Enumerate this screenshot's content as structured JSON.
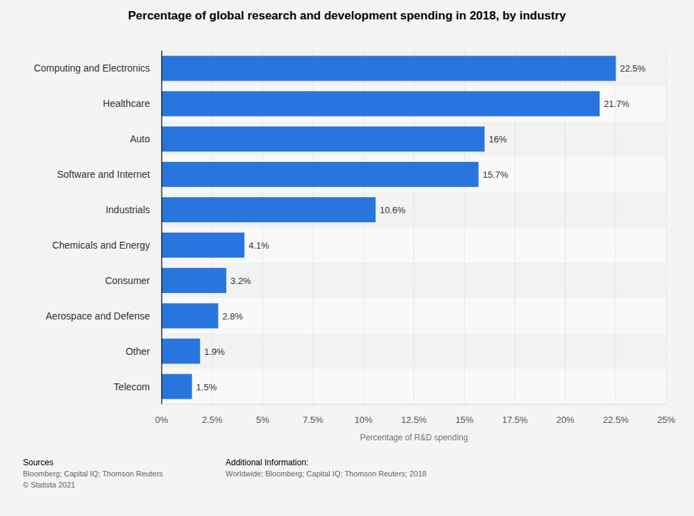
{
  "chart_data": {
    "type": "bar",
    "orientation": "horizontal",
    "title": "Percentage of global research and development spending in 2018, by industry",
    "x_label": "Percentage of R&D spending",
    "categories": [
      "Computing and Electronics",
      "Healthcare",
      "Auto",
      "Software and Internet",
      "Industrials",
      "Chemicals and Energy",
      "Consumer",
      "Aerospace and Defense",
      "Other",
      "Telecom"
    ],
    "values": [
      22.5,
      21.7,
      16,
      15.7,
      10.6,
      4.1,
      3.2,
      2.8,
      1.9,
      1.5
    ],
    "value_labels": [
      "22.5%",
      "21.7%",
      "16%",
      "15.7%",
      "10.6%",
      "4.1%",
      "3.2%",
      "2.8%",
      "1.9%",
      "1.5%"
    ],
    "data_labels": true,
    "color": "#2876dd",
    "xlim": [
      0,
      25
    ],
    "xticks": [
      {
        "value": 0,
        "label": "0%"
      },
      {
        "value": 2.5,
        "label": "2.5%"
      },
      {
        "value": 5,
        "label": "5%"
      },
      {
        "value": 7.5,
        "label": "7.5%"
      },
      {
        "value": 10,
        "label": "10%"
      },
      {
        "value": 12.5,
        "label": "12.5%"
      },
      {
        "value": 15,
        "label": "15%"
      },
      {
        "value": 17.5,
        "label": "17.5%"
      },
      {
        "value": 20,
        "label": "20%"
      },
      {
        "value": 22.5,
        "label": "22.5%"
      },
      {
        "value": 25,
        "label": "25%"
      }
    ],
    "grid": true,
    "footer": {
      "sources_heading": "Sources",
      "sources": [
        "Bloomberg; Capital IQ; Thomson Reuters",
        "© Statista 2021"
      ],
      "info_heading": "Additional Information:",
      "info": [
        "Worldwide; Bloomberg; Capital IQ; Thomson Reuters; 2018"
      ]
    }
  }
}
